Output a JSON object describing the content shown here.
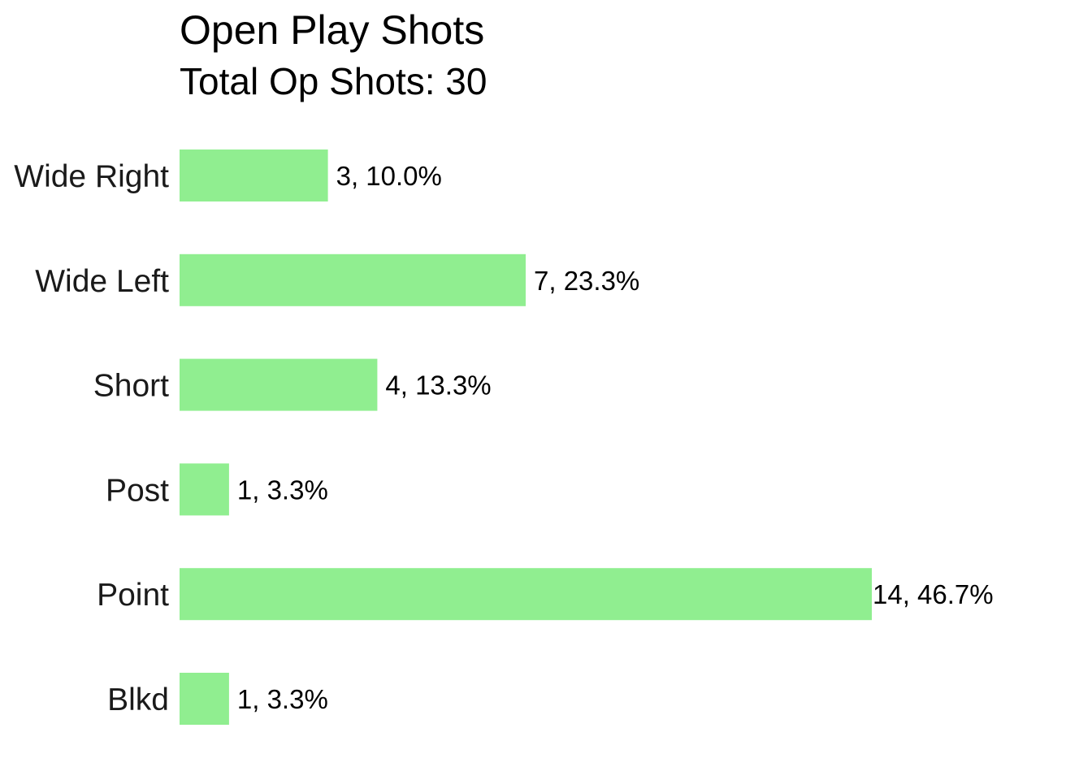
{
  "chart_data": {
    "type": "bar",
    "orientation": "horizontal",
    "title": "Open Play Shots",
    "subtitle": "Total Op Shots: 30",
    "xlabel": "",
    "ylabel": "",
    "grid": false,
    "bar_color": "#90EE90",
    "categories": [
      "Wide Right",
      "Wide Left",
      "Short",
      "Post",
      "Point",
      "Blkd"
    ],
    "values": [
      3,
      7,
      4,
      1,
      14,
      1
    ],
    "data_labels": [
      "3, 10.0%",
      "7, 23.3%",
      "4, 13.3%",
      "1, 3.3%",
      "14, 46.7%",
      "1, 3.3%"
    ],
    "xlim": [
      0,
      14
    ]
  }
}
